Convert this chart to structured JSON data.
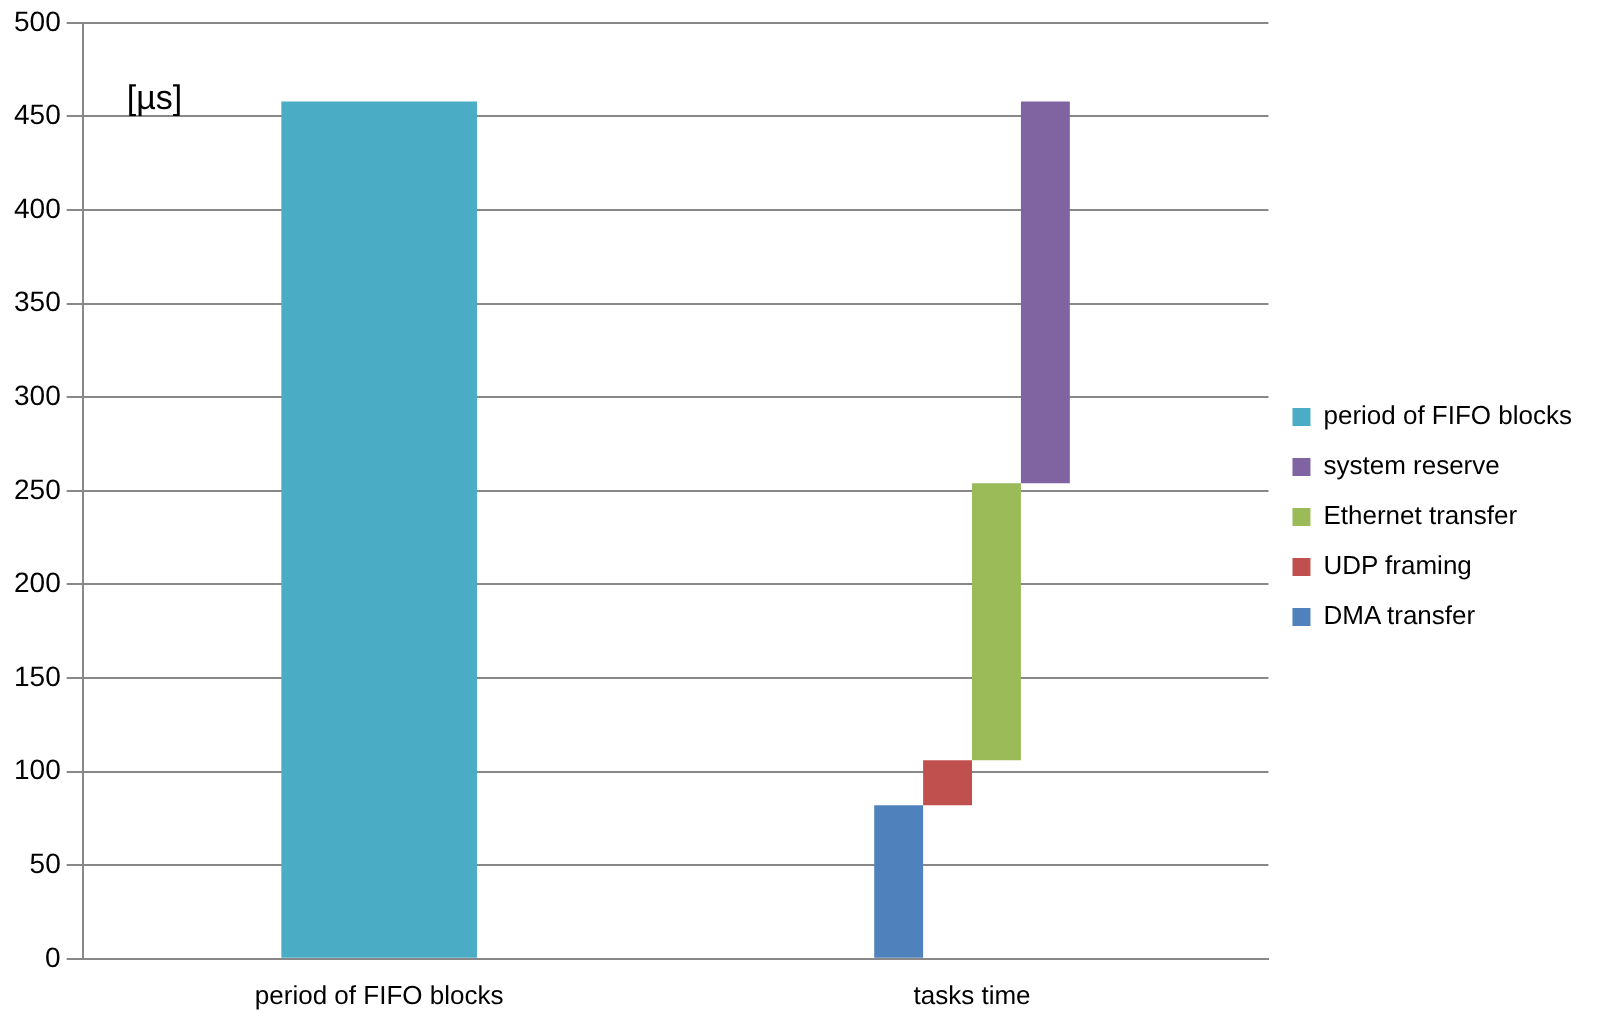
{
  "chart_data": {
    "type": "bar",
    "ylabel": "[µs]",
    "categories": [
      "period of FIFO blocks",
      "tasks time"
    ],
    "series": [
      {
        "name": "DMA transfer",
        "color": "#4f81bd",
        "values": [
          null,
          82
        ],
        "base": [
          null,
          0
        ]
      },
      {
        "name": "UDP framing",
        "color": "#c0504d",
        "values": [
          null,
          24
        ],
        "base": [
          null,
          82
        ]
      },
      {
        "name": "Ethernet transfer",
        "color": "#9bbb59",
        "values": [
          null,
          148
        ],
        "base": [
          null,
          106
        ]
      },
      {
        "name": "system reserve",
        "color": "#8064a2",
        "values": [
          null,
          204
        ],
        "base": [
          null,
          254
        ]
      },
      {
        "name": "period of FIFO blocks",
        "color": "#4bacc6",
        "values": [
          458,
          null
        ],
        "base": [
          0,
          null
        ]
      }
    ],
    "ylim": [
      0,
      500
    ],
    "yticks": [
      0,
      50,
      100,
      150,
      200,
      250,
      300,
      350,
      400,
      450,
      500
    ],
    "grid": "y",
    "legend": "right"
  }
}
